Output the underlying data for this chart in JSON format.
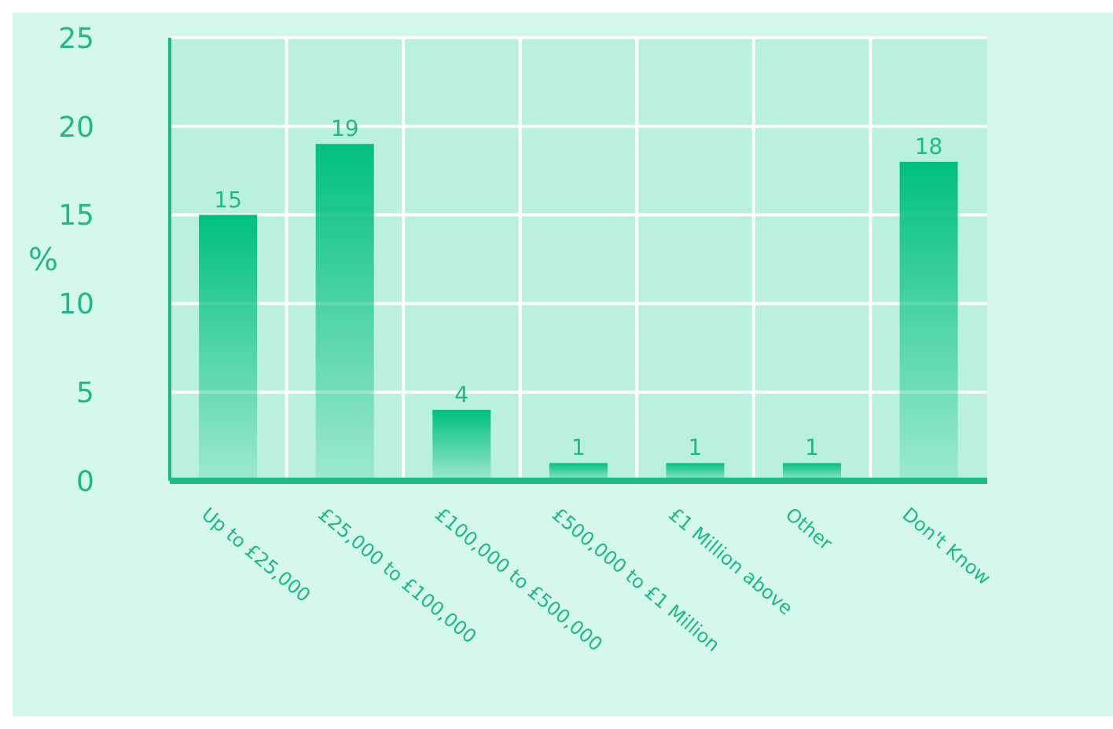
{
  "chart_data": {
    "type": "bar",
    "ylabel": "%",
    "categories": [
      "Up to £25,000",
      "£25,000 to £100,000",
      "£100,000 to £500,000",
      "£500,000 to £1 Million",
      "£1 Million above",
      "Other",
      "Don't Know"
    ],
    "values": [
      15,
      19,
      4,
      1,
      1,
      1,
      18
    ],
    "color": "#00bf7f",
    "ylim": [
      0,
      25
    ],
    "yticks": [
      0,
      5,
      10,
      15,
      20,
      25
    ],
    "grid": true,
    "data_labels": true
  }
}
